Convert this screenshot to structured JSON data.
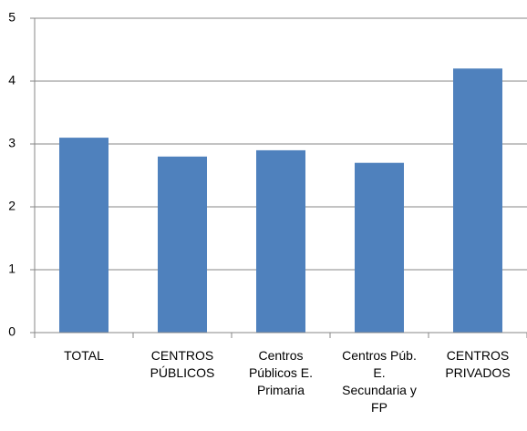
{
  "chart_data": {
    "type": "bar",
    "categories": [
      "TOTAL",
      "CENTROS PÚBLICOS",
      "Centros Públicos E. Primaria",
      "Centros Púb. E. Secundaria y FP",
      "CENTROS PRIVADOS"
    ],
    "values": [
      3.1,
      2.8,
      2.9,
      2.7,
      4.2
    ],
    "color": "#4f81bd",
    "ylim": [
      0,
      5
    ],
    "yticks": [
      0,
      1,
      2,
      3,
      4,
      5
    ],
    "grid": true
  }
}
